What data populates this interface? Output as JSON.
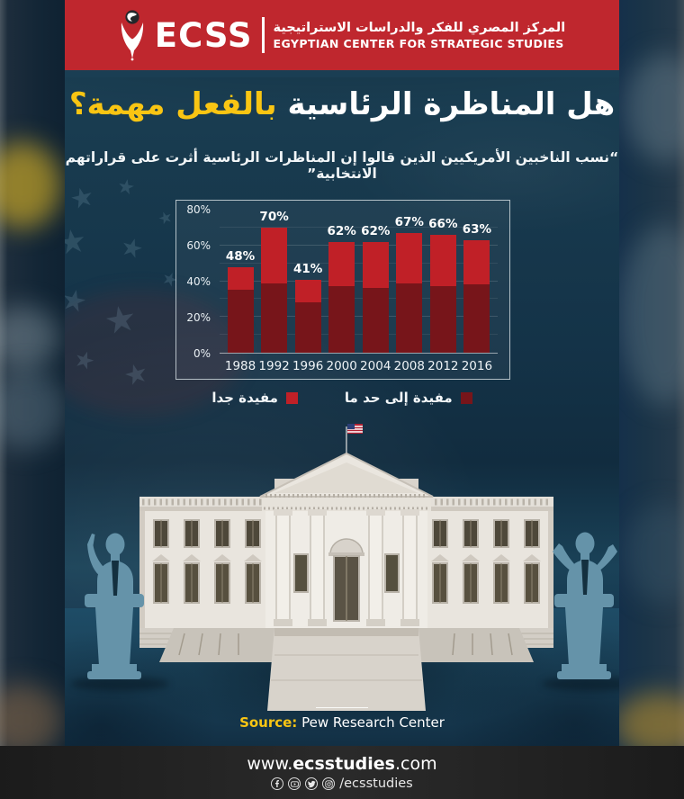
{
  "header": {
    "logo_text": "ECSS",
    "org_name_ar": "المركز المصري للفكر والدراسات الاستراتيجية",
    "org_name_en": "EGYPTIAN CENTER FOR STRATEGIC STUDIES"
  },
  "title": {
    "part_white": "هل المناظرة الرئاسية",
    "part_yellow": "بالفعل مهمة؟"
  },
  "subtitle": "“نسب الناخبين الأمريكيين الذين قالوا إن المناظرات الرئاسية أثرت على قراراتهم الانتخابية”",
  "chart_data": {
    "type": "bar",
    "stacked": true,
    "categories": [
      "1988",
      "1992",
      "1996",
      "2000",
      "2004",
      "2008",
      "2012",
      "2016"
    ],
    "series": [
      {
        "name": "مفيدة إلى حد ما",
        "color": "#77151a",
        "values": [
          35,
          39,
          28,
          37,
          36,
          39,
          37,
          38
        ]
      },
      {
        "name": "مفيدة جدا",
        "color": "#c02027",
        "values": [
          13,
          31,
          13,
          25,
          26,
          28,
          29,
          25
        ]
      }
    ],
    "totals": [
      "48%",
      "70%",
      "41%",
      "62%",
      "62%",
      "67%",
      "66%",
      "63%"
    ],
    "ylim": [
      0,
      80
    ],
    "yticks": [
      {
        "label": "0%",
        "value": 0
      },
      {
        "label": "20%",
        "value": 20
      },
      {
        "label": "40%",
        "value": 40
      },
      {
        "label": "60%",
        "value": 60
      },
      {
        "label": "80%",
        "value": 80
      }
    ],
    "grid": true,
    "gridline_step": 10,
    "legend_position": "bottom",
    "title": "",
    "xlabel": "",
    "ylabel": ""
  },
  "legend": [
    {
      "label": "مفيدة إلى حد ما",
      "color": "#77151a"
    },
    {
      "label": "مفيدة جدا",
      "color": "#c02027"
    }
  ],
  "source": {
    "label": "Source:",
    "value": "Pew Research Center"
  },
  "footer": {
    "site_prefix": "www.",
    "site_bold": "ecsstudies",
    "site_suffix": ".com",
    "social_handle": "/ecsstudies",
    "social_icons": [
      "facebook-icon",
      "youtube-icon",
      "twitter-icon",
      "instagram-icon"
    ]
  },
  "colors": {
    "header_red": "#bf272e",
    "accent_yellow": "#f9c513",
    "bar_dark_red": "#77151a",
    "bar_bright_red": "#c02027",
    "poster_bg": "#143348",
    "footer_bg": "#222222"
  }
}
